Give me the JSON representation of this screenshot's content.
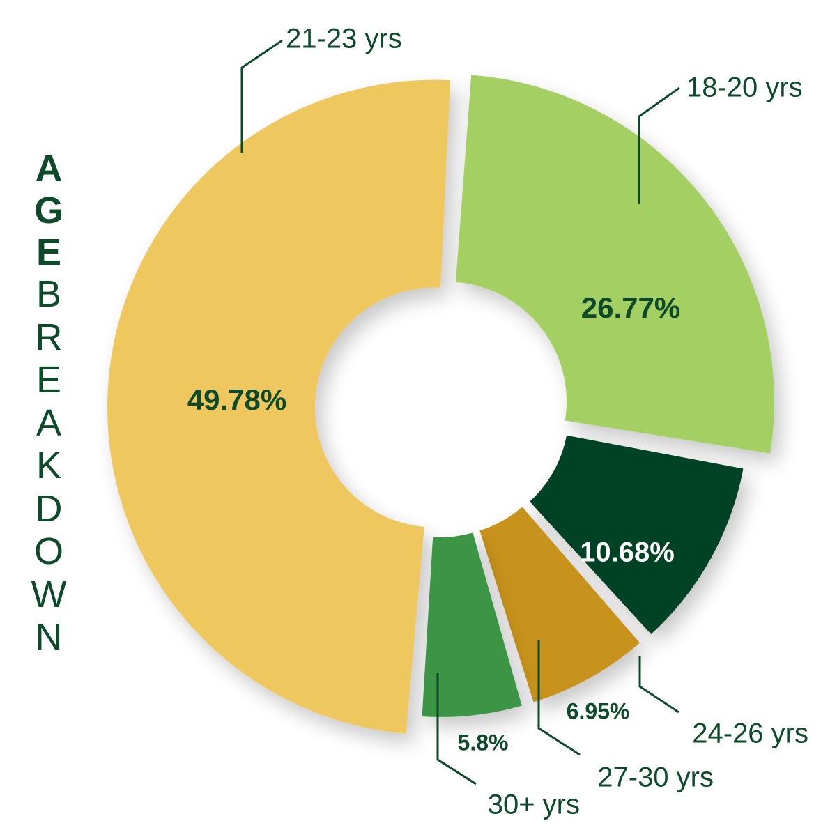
{
  "title": {
    "word1_letters": [
      "A",
      "G",
      "E"
    ],
    "word2_letters": [
      "B",
      "R",
      "E",
      "A",
      "K",
      "D",
      "O",
      "W",
      "N"
    ]
  },
  "chart_data": {
    "type": "pie",
    "variant": "donut, exploded slices",
    "title": "AGE BREAKDOWN",
    "slices": [
      {
        "label": "21-23 yrs",
        "value": 49.78,
        "value_label": "49.78%",
        "color": "#efc75e"
      },
      {
        "label": "18-20 yrs",
        "value": 26.77,
        "value_label": "26.77%",
        "color": "#a4cf62"
      },
      {
        "label": "24-26 yrs",
        "value": 10.68,
        "value_label": "10.68%",
        "color": "#034325"
      },
      {
        "label": "27-30 yrs",
        "value": 6.95,
        "value_label": "6.95%",
        "color": "#c7931d"
      },
      {
        "label": "30+ yrs",
        "value": 5.8,
        "value_label": "5.8%",
        "color": "#3a9544"
      }
    ],
    "label_color": "#0c4a2a",
    "leader_line_color": "#0c4a2a",
    "value_label_on_dark_color": "#ffffff"
  }
}
